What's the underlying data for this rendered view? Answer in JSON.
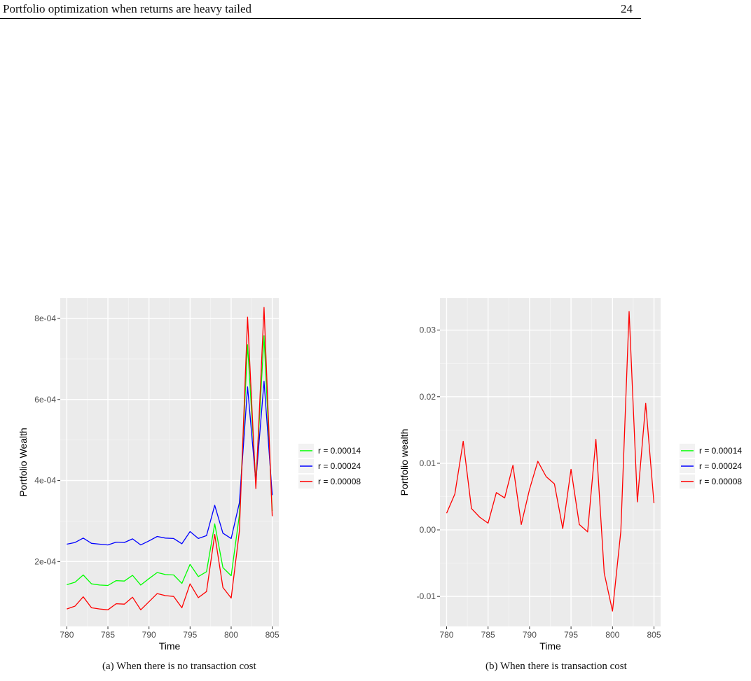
{
  "header": {
    "title": "Portfolio optimization when returns are heavy tailed",
    "page_number": "24"
  },
  "figures": [
    {
      "caption": "(a) When there is no transaction cost",
      "chart_data": {
        "type": "line",
        "xlabel": "Time",
        "ylabel": "Portfolio Wealth",
        "xlim": [
          779.2,
          805.8
        ],
        "ylim": [
          4e-05,
          0.00085
        ],
        "x_ticks": [
          780,
          785,
          790,
          795,
          800,
          805
        ],
        "x_tick_labels": [
          "780",
          "785",
          "790",
          "795",
          "800",
          "805"
        ],
        "y_ticks": [
          0.0002,
          0.0004,
          0.0006,
          0.0008
        ],
        "y_tick_labels": [
          "2e-04",
          "4e-04",
          "6e-04",
          "8e-04"
        ],
        "grid": true,
        "legend_position": "right",
        "x": [
          780,
          781,
          782,
          783,
          784,
          785,
          786,
          787,
          788,
          789,
          790,
          791,
          792,
          793,
          794,
          795,
          796,
          797,
          798,
          799,
          800,
          801,
          802,
          803,
          804,
          805
        ],
        "series": [
          {
            "name": "r = 0.00014",
            "color": "#00ff00",
            "values": [
              0.000143,
              0.000149,
              0.000167,
              0.000145,
              0.000142,
              0.000141,
              0.000153,
              0.000152,
              0.000166,
              0.000142,
              0.000158,
              0.000173,
              0.000168,
              0.000167,
              0.000146,
              0.000193,
              0.000163,
              0.000175,
              0.000293,
              0.000185,
              0.000165,
              0.000315,
              0.000735,
              0.000395,
              0.000757,
              0.000325
            ]
          },
          {
            "name": "r = 0.00024",
            "color": "#0000ff",
            "values": [
              0.000243,
              0.000247,
              0.000258,
              0.000245,
              0.000243,
              0.000241,
              0.000248,
              0.000247,
              0.000256,
              0.000241,
              0.000251,
              0.000262,
              0.000258,
              0.000257,
              0.000244,
              0.000274,
              0.000257,
              0.000264,
              0.000339,
              0.00027,
              0.000257,
              0.000345,
              0.000631,
              0.000397,
              0.000645,
              0.000364
            ]
          },
          {
            "name": "r = 0.00008",
            "color": "#ff0000",
            "values": [
              8.3e-05,
              9e-05,
              0.000113,
              8.6e-05,
              8.3e-05,
              8.1e-05,
              9.6e-05,
              9.5e-05,
              0.000112,
              8.1e-05,
              0.000101,
              0.000121,
              0.000116,
              0.000114,
              8.6e-05,
              0.000145,
              0.000111,
              0.000126,
              0.000267,
              0.000136,
              0.00011,
              0.000275,
              0.000803,
              0.00038,
              0.000827,
              0.000312
            ]
          }
        ]
      }
    },
    {
      "caption": "(b) When there is transaction cost",
      "chart_data": {
        "type": "line",
        "xlabel": "Time",
        "ylabel": "Portfolio wealth",
        "xlim": [
          779.2,
          805.8
        ],
        "ylim": [
          -0.0145,
          0.0348
        ],
        "x_ticks": [
          780,
          785,
          790,
          795,
          800,
          805
        ],
        "x_tick_labels": [
          "780",
          "785",
          "790",
          "795",
          "800",
          "805"
        ],
        "y_ticks": [
          -0.01,
          0,
          0.01,
          0.02,
          0.03
        ],
        "y_tick_labels": [
          "-0.01",
          "0.00",
          "0.01",
          "0.02",
          "0.03"
        ],
        "grid": true,
        "legend_position": "right",
        "x": [
          780,
          781,
          782,
          783,
          784,
          785,
          786,
          787,
          788,
          789,
          790,
          791,
          792,
          793,
          794,
          795,
          796,
          797,
          798,
          799,
          800,
          801,
          802,
          803,
          804,
          805
        ],
        "series": [
          {
            "name": "r = 0.00014",
            "color": "#00ff00",
            "values": [
              0.0025,
              0.0054,
              0.0133,
              0.0032,
              0.0019,
              0.001,
              0.0056,
              0.0048,
              0.0097,
              0.0008,
              0.0061,
              0.0103,
              0.008,
              0.0069,
              0.0002,
              0.0091,
              0.0008,
              -0.0003,
              0.0136,
              -0.0065,
              -0.0122,
              -0.0002,
              0.0328,
              0.0042,
              0.019,
              0.004
            ]
          },
          {
            "name": "r = 0.00024",
            "color": "#0000ff",
            "values": [
              0.0025,
              0.0054,
              0.0133,
              0.0032,
              0.0019,
              0.001,
              0.0056,
              0.0048,
              0.0097,
              0.0008,
              0.0061,
              0.0103,
              0.008,
              0.0069,
              0.0002,
              0.0091,
              0.0008,
              -0.0003,
              0.0136,
              -0.0065,
              -0.0122,
              -0.0002,
              0.0328,
              0.0042,
              0.019,
              0.004
            ]
          },
          {
            "name": "r = 0.00008",
            "color": "#ff0000",
            "values": [
              0.0025,
              0.0054,
              0.0133,
              0.0032,
              0.0019,
              0.001,
              0.0056,
              0.0048,
              0.0097,
              0.0008,
              0.0061,
              0.0103,
              0.008,
              0.0069,
              0.0002,
              0.0091,
              0.0008,
              -0.0003,
              0.0136,
              -0.0065,
              -0.0122,
              -0.0002,
              0.0328,
              0.0042,
              0.019,
              0.004
            ]
          }
        ]
      }
    }
  ]
}
